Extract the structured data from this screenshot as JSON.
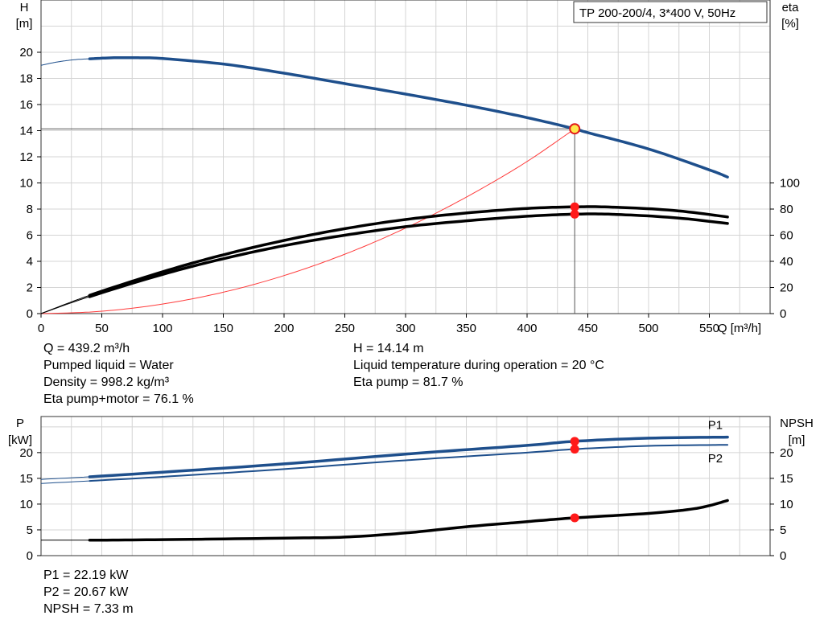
{
  "chart_data": [
    {
      "type": "line",
      "title": "TP 200-200/4, 3*400 V, 50Hz",
      "xlabel": "Q [m³/h]",
      "ylabel_left": [
        "H",
        "[m]"
      ],
      "ylabel_right": [
        "eta",
        "[%]"
      ],
      "xlim": [
        0,
        600
      ],
      "ylim_left": [
        0,
        24
      ],
      "ylim_right": [
        0,
        240
      ],
      "xticks": [
        0,
        50,
        100,
        150,
        200,
        250,
        300,
        350,
        400,
        450,
        500,
        550
      ],
      "yticks_left": [
        0,
        2,
        4,
        6,
        8,
        10,
        12,
        14,
        16,
        18,
        20
      ],
      "yticks_right": [
        0,
        20,
        40,
        60,
        80,
        100
      ],
      "grid": true,
      "series": [
        {
          "key": "H",
          "axis": "left",
          "color": "#1e4f8c",
          "x_ext": [
            0,
            10,
            20,
            30,
            40
          ],
          "y_ext": [
            19.0,
            19.2,
            19.35,
            19.45,
            19.5
          ],
          "x": [
            40,
            60,
            80,
            100,
            150,
            200,
            250,
            300,
            350,
            400,
            439.2,
            450,
            500,
            550,
            565
          ],
          "y": [
            19.5,
            19.58,
            19.58,
            19.52,
            19.1,
            18.4,
            17.6,
            16.8,
            15.95,
            15.0,
            14.14,
            13.85,
            12.6,
            11.0,
            10.45
          ]
        },
        {
          "key": "system",
          "axis": "left",
          "color": "#ff3b3b",
          "x": [
            0,
            40,
            80,
            120,
            160,
            200,
            240,
            280,
            320,
            360,
            400,
            439.2
          ],
          "y": [
            0,
            0.12,
            0.47,
            1.05,
            1.86,
            2.91,
            4.19,
            5.7,
            7.45,
            9.43,
            11.64,
            14.14
          ]
        },
        {
          "key": "eta_pump",
          "axis": "right",
          "color": "#000000",
          "x": [
            0,
            40,
            100,
            150,
            200,
            250,
            300,
            350,
            400,
            439.2,
            470,
            520,
            565
          ],
          "y": [
            0,
            14,
            32,
            45,
            56,
            65,
            72,
            77,
            80.5,
            81.7,
            81.5,
            79,
            74
          ]
        },
        {
          "key": "eta_total",
          "axis": "right",
          "color": "#000000",
          "x": [
            0,
            40,
            100,
            150,
            200,
            250,
            300,
            350,
            400,
            439.2,
            470,
            520,
            565
          ],
          "y": [
            0,
            13,
            30,
            42,
            52,
            60,
            66.5,
            71,
            74.5,
            76.1,
            76,
            73.5,
            69
          ]
        }
      ],
      "operating_point": {
        "Q": 439.2,
        "H": 14.14,
        "eta_pump": 81.7,
        "eta_total": 76.1
      }
    },
    {
      "type": "line",
      "xlim": [
        0,
        600
      ],
      "ylabel_left": [
        "P",
        "[kW]"
      ],
      "ylabel_right": [
        "NPSH",
        "[m]"
      ],
      "ylim_left": [
        0,
        27
      ],
      "ylim_right": [
        0,
        27
      ],
      "yticks_left": [
        0,
        5,
        10,
        15,
        20
      ],
      "yticks_right": [
        0,
        5,
        10,
        15,
        20
      ],
      "grid": true,
      "series": [
        {
          "key": "P1",
          "name": "P1",
          "axis": "left",
          "color": "#1e4f8c",
          "x_ext": [
            0,
            40
          ],
          "y_ext": [
            14.8,
            15.3
          ],
          "x": [
            40,
            100,
            200,
            300,
            400,
            439.2,
            500,
            565
          ],
          "y": [
            15.3,
            16.2,
            17.8,
            19.7,
            21.4,
            22.19,
            22.8,
            23.0
          ]
        },
        {
          "key": "P2",
          "name": "P2",
          "axis": "left",
          "color": "#1e4f8c",
          "x_ext": [
            0,
            40
          ],
          "y_ext": [
            14.0,
            14.5
          ],
          "x": [
            40,
            100,
            200,
            300,
            400,
            439.2,
            500,
            565
          ],
          "y": [
            14.5,
            15.3,
            16.8,
            18.5,
            20.0,
            20.67,
            21.3,
            21.5
          ]
        },
        {
          "key": "NPSH",
          "axis": "right",
          "color": "#000000",
          "x_ext": [
            0,
            40
          ],
          "y_ext": [
            3.0,
            3.0
          ],
          "x": [
            40,
            100,
            200,
            250,
            300,
            350,
            400,
            439.2,
            500,
            540,
            565
          ],
          "y": [
            3.0,
            3.1,
            3.4,
            3.6,
            4.4,
            5.6,
            6.6,
            7.33,
            8.2,
            9.2,
            10.7
          ]
        }
      ],
      "operating_point": {
        "Q": 439.2,
        "P1": 22.19,
        "P2": 20.67,
        "NPSH": 7.33
      }
    }
  ],
  "info_top_left": [
    "Q = 439.2 m³/h",
    "Pumped liquid = Water",
    "Density = 998.2 kg/m³",
    "Eta pump+motor = 76.1 %"
  ],
  "info_top_right": [
    "H = 14.14 m",
    "Liquid temperature during operation = 20 °C",
    "Eta pump = 81.7 %"
  ],
  "info_bottom": [
    "P1 = 22.19 kW",
    "P2 = 20.67 kW",
    "NPSH = 7.33 m"
  ]
}
